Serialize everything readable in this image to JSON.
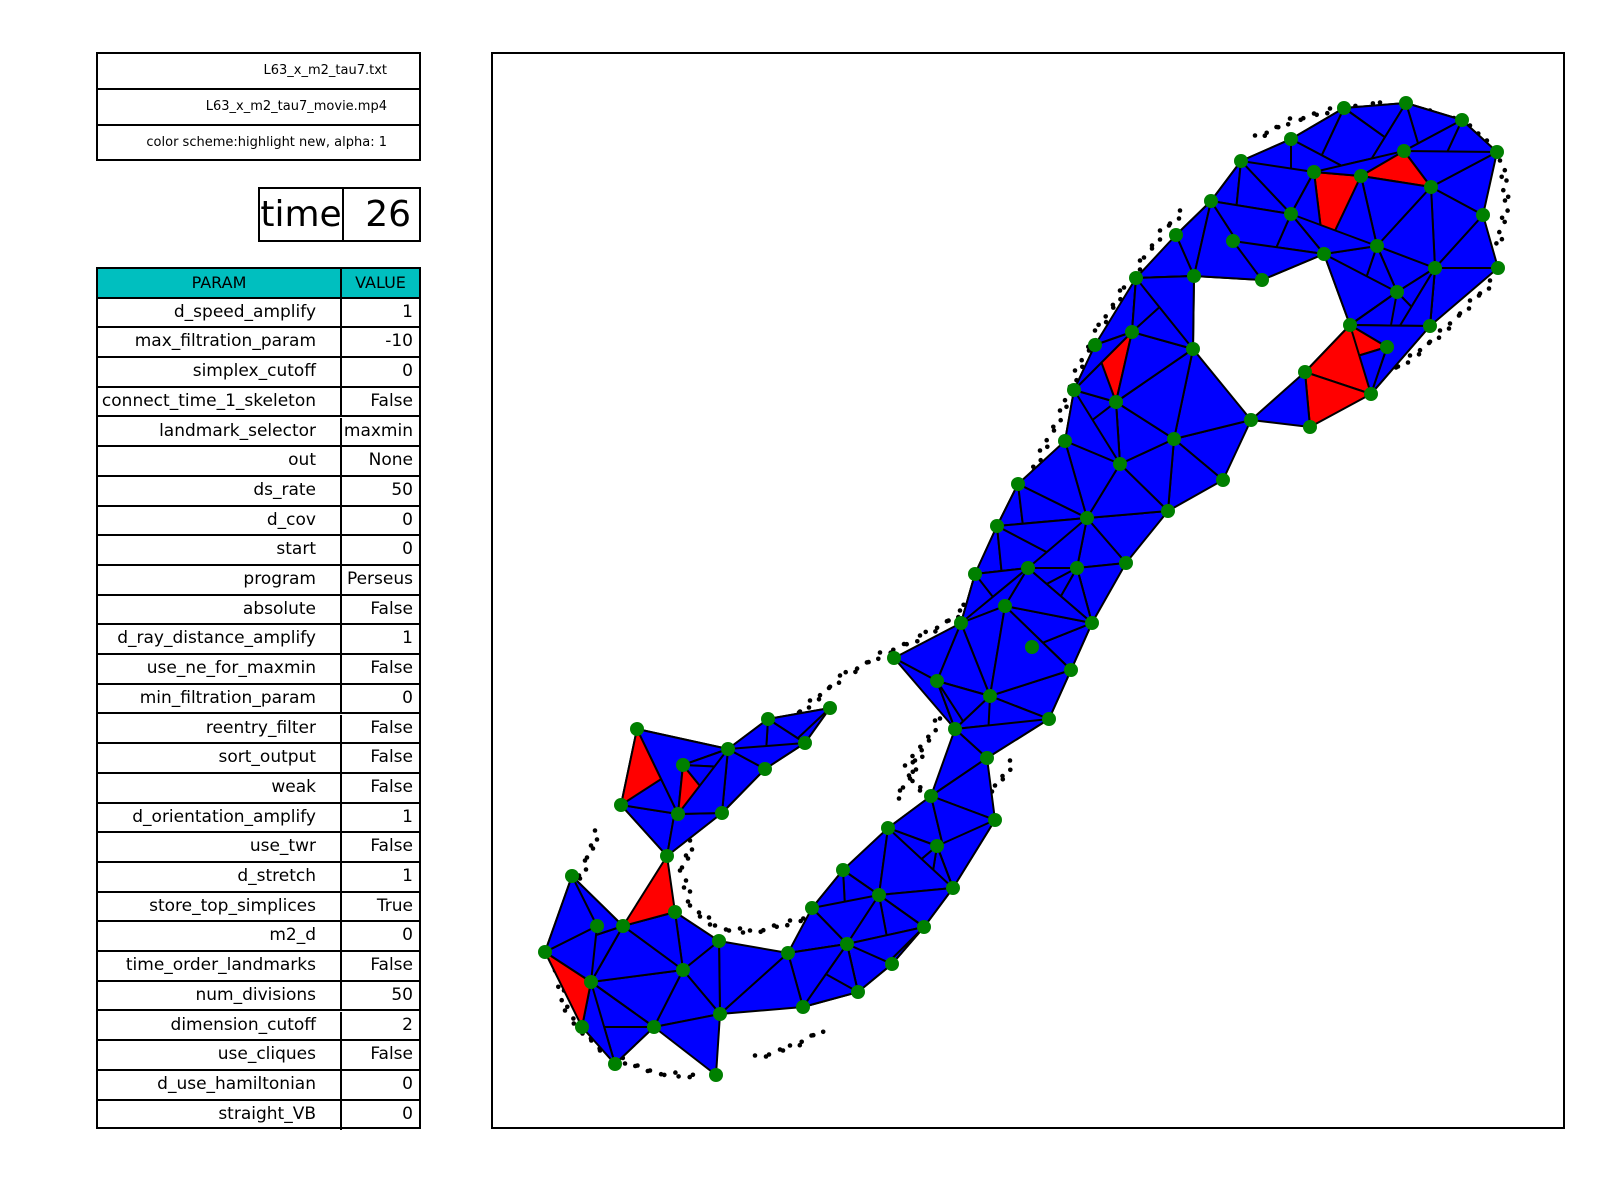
{
  "files": {
    "data_file": "L63_x_m2_tau7.txt",
    "movie_file": "L63_x_m2_tau7_movie.mp4",
    "color_scheme": "color scheme:highlight new, alpha: 1"
  },
  "time": {
    "label": "time",
    "value": "26"
  },
  "params": {
    "header": {
      "name": "PARAM",
      "value": "VALUE"
    },
    "rows": [
      {
        "name": "d_speed_amplify",
        "value": "1"
      },
      {
        "name": "max_filtration_param",
        "value": "-10"
      },
      {
        "name": "simplex_cutoff",
        "value": "0"
      },
      {
        "name": "connect_time_1_skeleton",
        "value": "False"
      },
      {
        "name": "landmark_selector",
        "value": "maxmin"
      },
      {
        "name": "out",
        "value": "None"
      },
      {
        "name": "ds_rate",
        "value": "50"
      },
      {
        "name": "d_cov",
        "value": "0"
      },
      {
        "name": "start",
        "value": "0"
      },
      {
        "name": "program",
        "value": "Perseus"
      },
      {
        "name": "absolute",
        "value": "False"
      },
      {
        "name": "d_ray_distance_amplify",
        "value": "1"
      },
      {
        "name": "use_ne_for_maxmin",
        "value": "False"
      },
      {
        "name": "min_filtration_param",
        "value": "0"
      },
      {
        "name": "reentry_filter",
        "value": "False"
      },
      {
        "name": "sort_output",
        "value": "False"
      },
      {
        "name": "weak",
        "value": "False"
      },
      {
        "name": "d_orientation_amplify",
        "value": "1"
      },
      {
        "name": "use_twr",
        "value": "False"
      },
      {
        "name": "d_stretch",
        "value": "1"
      },
      {
        "name": "store_top_simplices",
        "value": "True"
      },
      {
        "name": "m2_d",
        "value": "0"
      },
      {
        "name": "time_order_landmarks",
        "value": "False"
      },
      {
        "name": "num_divisions",
        "value": "50"
      },
      {
        "name": "dimension_cutoff",
        "value": "2"
      },
      {
        "name": "use_cliques",
        "value": "False"
      },
      {
        "name": "d_use_hamiltonian",
        "value": "0"
      },
      {
        "name": "straight_VB",
        "value": "0"
      }
    ]
  },
  "colors": {
    "header_bg": "#00bfbf",
    "simplex_old": "#0000ff",
    "simplex_new": "#ff0000",
    "landmark": "#008000",
    "witness": "#000000"
  },
  "plot": {
    "landmark_count": 94
  }
}
